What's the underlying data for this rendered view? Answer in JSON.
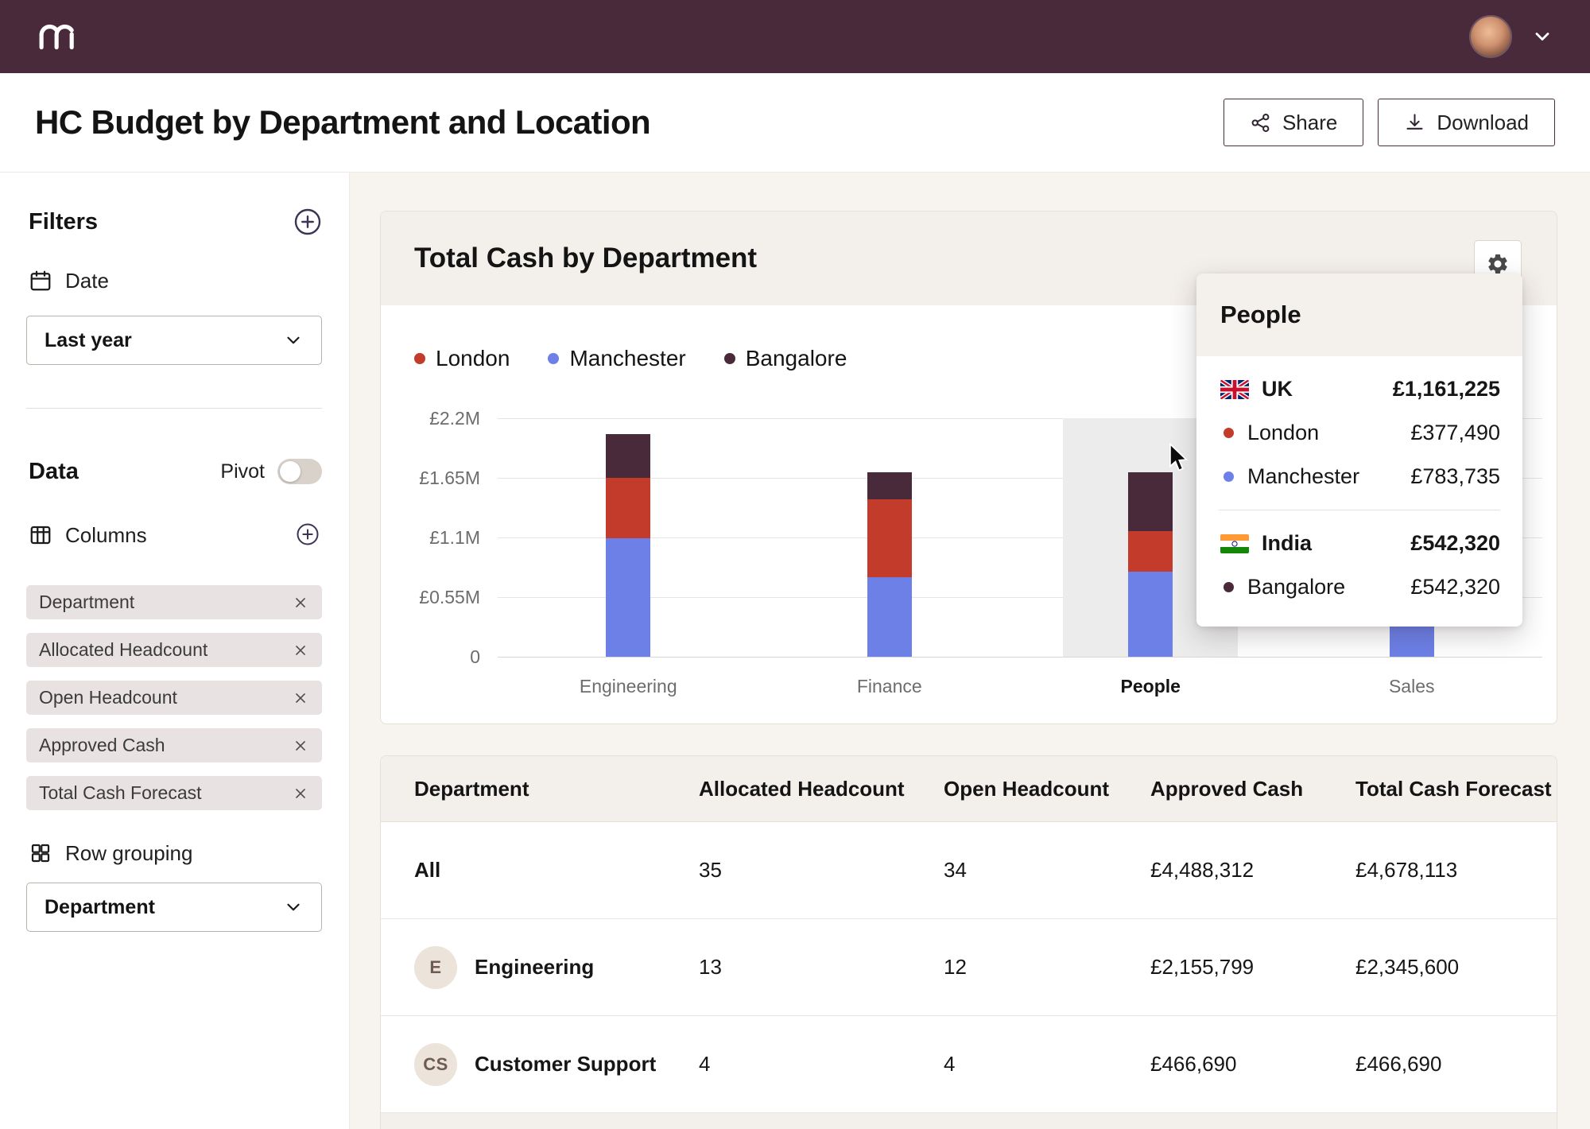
{
  "header": {
    "title": "HC Budget by Department and Location",
    "share_label": "Share",
    "download_label": "Download"
  },
  "sidebar": {
    "filters_title": "Filters",
    "date_label": "Date",
    "date_value": "Last year",
    "data_title": "Data",
    "pivot_label": "Pivot",
    "pivot_enabled": false,
    "columns_label": "Columns",
    "column_chips": [
      "Department",
      "Allocated Headcount",
      "Open Headcount",
      "Approved Cash",
      "Total Cash Forecast"
    ],
    "row_grouping_label": "Row grouping",
    "row_grouping_value": "Department"
  },
  "chart_card": {
    "title": "Total Cash by Department"
  },
  "chart_data": {
    "type": "bar",
    "stacked": true,
    "title": "Total Cash by Department",
    "categories": [
      "Engineering",
      "Finance",
      "People",
      "Sales"
    ],
    "series": [
      {
        "name": "London",
        "color": "#c23b2b",
        "values": [
          560000,
          720000,
          377490,
          280000
        ]
      },
      {
        "name": "Manchester",
        "color": "#6d80e8",
        "values": [
          1090000,
          730000,
          783735,
          520000
        ]
      },
      {
        "name": "Bangalore",
        "color": "#492a3a",
        "values": [
          400000,
          250000,
          542320,
          130000
        ]
      }
    ],
    "stack_order": [
      "Manchester",
      "London",
      "Bangalore"
    ],
    "y_ticks": [
      "£2.2M",
      "£1.65M",
      "£1.1M",
      "£0.55M",
      "0"
    ],
    "y_tick_values": [
      2200000,
      1650000,
      1100000,
      550000,
      0
    ],
    "ylim": [
      0,
      2200000
    ],
    "currency": "GBP",
    "legend_position": "top-left",
    "highlighted_category": "People"
  },
  "tooltip": {
    "title": "People",
    "groups": [
      {
        "flag": "uk",
        "country": "UK",
        "total": "£1,161,225",
        "rows": [
          {
            "label": "London",
            "value": "£377,490",
            "color": "#c23b2b"
          },
          {
            "label": "Manchester",
            "value": "£783,735",
            "color": "#6d80e8"
          }
        ]
      },
      {
        "flag": "india",
        "country": "India",
        "total": "£542,320",
        "rows": [
          {
            "label": "Bangalore",
            "value": "£542,320",
            "color": "#492a3a"
          }
        ]
      }
    ]
  },
  "table": {
    "columns": [
      "Department",
      "Allocated Headcount",
      "Open Headcount",
      "Approved Cash",
      "Total Cash Forecast"
    ],
    "rows": [
      {
        "initials": "",
        "name": "All",
        "allocated": "35",
        "open": "34",
        "approved": "£4,488,312",
        "forecast": "£4,678,113"
      },
      {
        "initials": "E",
        "name": "Engineering",
        "allocated": "13",
        "open": "12",
        "approved": "£2,155,799",
        "forecast": "£2,345,600"
      },
      {
        "initials": "CS",
        "name": "Customer Support",
        "allocated": "4",
        "open": "4",
        "approved": "£466,690",
        "forecast": "£466,690"
      }
    ]
  },
  "colors": {
    "brand": "#492a3a",
    "background": "#f7f3ef",
    "london": "#c23b2b",
    "manchester": "#6d80e8",
    "bangalore": "#492a3a"
  },
  "icons": {
    "logo": "rippling-logo",
    "share": "share-nodes",
    "download": "arrow-down-tray",
    "add": "plus-circle",
    "date": "calendar",
    "columns": "table-columns",
    "row_grouping": "grid-2x2",
    "remove": "x-close",
    "settings": "gear",
    "select_caret": "chevron-down",
    "uk": "uk-flag",
    "india": "india-flag",
    "cursor": "mouse-pointer"
  }
}
